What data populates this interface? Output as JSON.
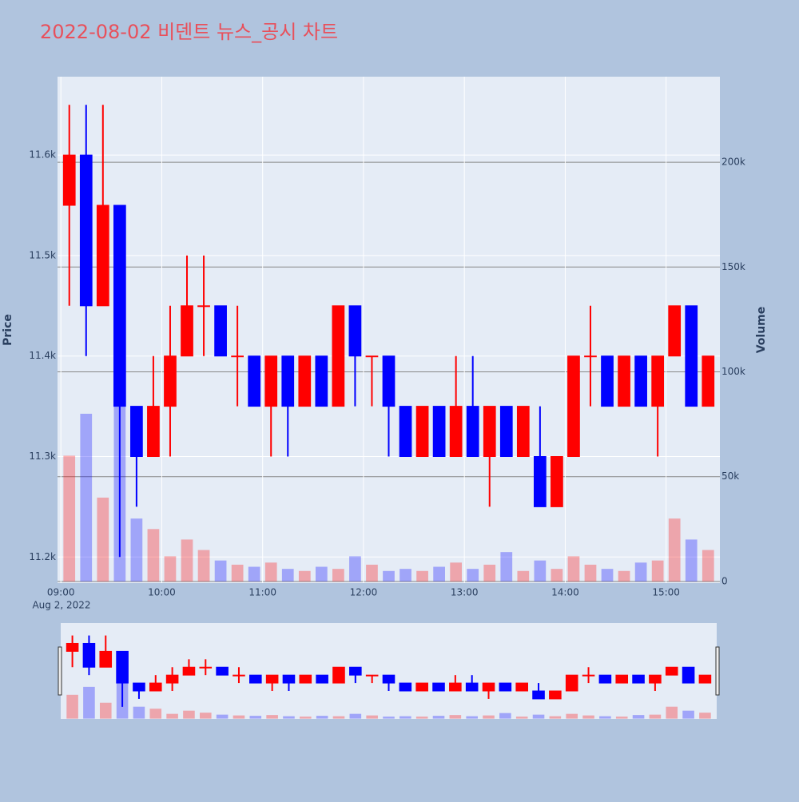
{
  "chart_data": {
    "type": "candlestick",
    "title": "2022-08-02 비덴트 뉴스_공시 차트",
    "x": [
      "09:00",
      "09:10",
      "09:20",
      "09:30",
      "09:40",
      "09:50",
      "10:00",
      "10:10",
      "10:20",
      "10:30",
      "10:40",
      "10:50",
      "11:00",
      "11:10",
      "11:20",
      "11:30",
      "11:40",
      "11:50",
      "12:00",
      "12:10",
      "12:20",
      "12:30",
      "12:40",
      "12:50",
      "13:00",
      "13:10",
      "13:20",
      "13:30",
      "13:40",
      "13:50",
      "14:00",
      "14:10",
      "14:20",
      "14:30",
      "14:40",
      "14:50",
      "15:00",
      "15:10",
      "15:20"
    ],
    "open": [
      11550,
      11600,
      11450,
      11550,
      11350,
      11300,
      11350,
      11400,
      11450,
      11450,
      11400,
      11400,
      11350,
      11400,
      11350,
      11400,
      11350,
      11450,
      11400,
      11400,
      11350,
      11300,
      11350,
      11300,
      11350,
      11300,
      11350,
      11300,
      11300,
      11250,
      11300,
      11400,
      11400,
      11350,
      11400,
      11350,
      11400,
      11450,
      11350
    ],
    "high": [
      11650,
      11650,
      11650,
      11550,
      11350,
      11400,
      11450,
      11500,
      11500,
      11450,
      11450,
      11400,
      11400,
      11400,
      11400,
      11400,
      11450,
      11450,
      11400,
      11400,
      11350,
      11350,
      11350,
      11400,
      11400,
      11350,
      11350,
      11350,
      11350,
      11300,
      11400,
      11450,
      11400,
      11400,
      11400,
      11400,
      11450,
      11450,
      11400
    ],
    "low": [
      11450,
      11400,
      11450,
      11200,
      11250,
      11300,
      11300,
      11400,
      11400,
      11400,
      11350,
      11350,
      11300,
      11300,
      11350,
      11350,
      11350,
      11350,
      11350,
      11300,
      11300,
      11300,
      11300,
      11300,
      11300,
      11250,
      11300,
      11300,
      11250,
      11250,
      11300,
      11350,
      11350,
      11350,
      11350,
      11300,
      11400,
      11350,
      11350
    ],
    "close": [
      11600,
      11450,
      11550,
      11350,
      11300,
      11350,
      11400,
      11450,
      11450,
      11400,
      11400,
      11350,
      11400,
      11350,
      11400,
      11350,
      11450,
      11400,
      11400,
      11350,
      11300,
      11350,
      11300,
      11350,
      11300,
      11350,
      11300,
      11350,
      11250,
      11300,
      11400,
      11400,
      11350,
      11400,
      11350,
      11400,
      11450,
      11350,
      11400
    ],
    "volume": [
      60000,
      80000,
      40000,
      90000,
      30000,
      25000,
      12000,
      20000,
      15000,
      10000,
      8000,
      7000,
      9000,
      6000,
      5000,
      7000,
      6000,
      12000,
      8000,
      5000,
      6000,
      5000,
      7000,
      9000,
      6000,
      8000,
      14000,
      5000,
      10000,
      6000,
      12000,
      8000,
      6000,
      5000,
      9000,
      10000,
      30000,
      20000,
      15000
    ],
    "increasing_color": "#ff0000",
    "decreasing_color": "#0000ff",
    "xlim": [
      "08:58",
      "15:32"
    ],
    "xticks": [
      "09:00",
      "10:00",
      "11:00",
      "12:00",
      "13:00",
      "14:00",
      "15:00"
    ],
    "x_sublabel": "Aug 2, 2022",
    "ylabel": "Price",
    "y2label": "Volume",
    "ylim": [
      11174,
      11678
    ],
    "yticks": [
      {
        "value": 11200,
        "label": "11.2k"
      },
      {
        "value": 11300,
        "label": "11.3k"
      },
      {
        "value": 11400,
        "label": "11.4k"
      },
      {
        "value": 11500,
        "label": "11.5k"
      },
      {
        "value": 11600,
        "label": "11.6k"
      }
    ],
    "y2lim": [
      -800,
      240800
    ],
    "y2ticks": [
      0,
      {
        "value": 50000,
        "label": "50k"
      },
      {
        "value": 100000,
        "label": "100k"
      },
      {
        "value": 150000,
        "label": "150k"
      },
      {
        "value": 200000,
        "label": "200k"
      }
    ],
    "rangeslider": true
  }
}
